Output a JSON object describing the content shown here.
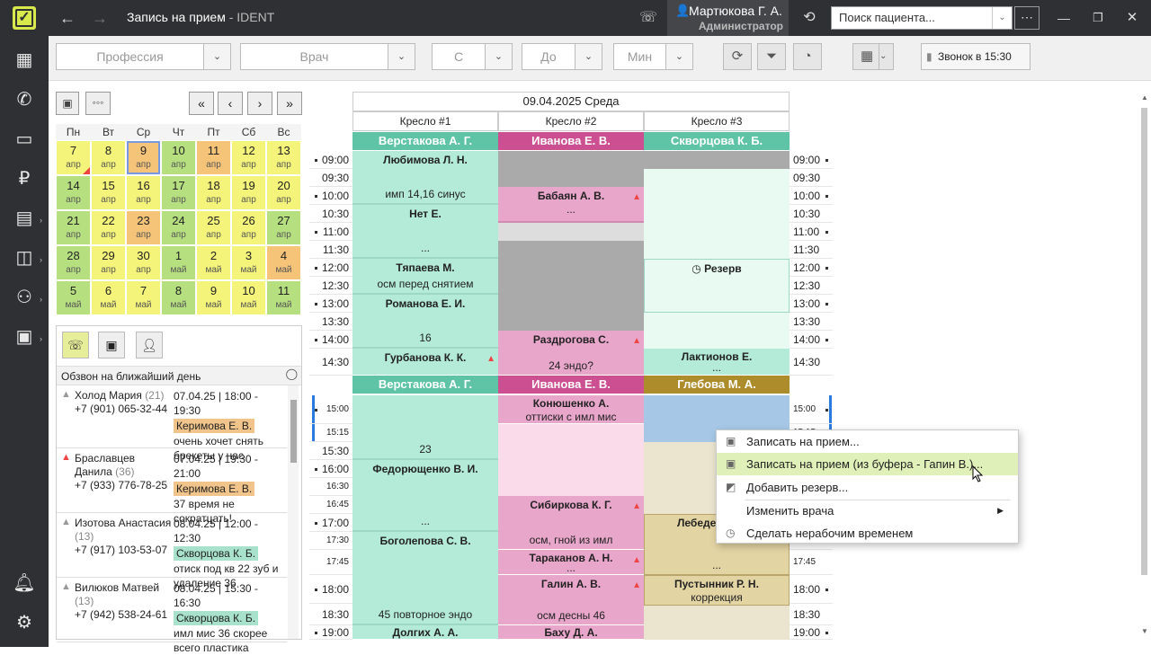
{
  "titlebar": {
    "title": "Запись на прием",
    "app": " - IDENT",
    "user": "Мартюкова Г. А.",
    "role": "Администратор",
    "search_placeholder": "Поиск пациента..."
  },
  "filters": {
    "profession": "Профессия",
    "doctor": "Врач",
    "from": "С",
    "to": "До",
    "min": "Мин",
    "call_btn": "Звонок в 15:30"
  },
  "calendar": {
    "weekdays": [
      "Пн",
      "Вт",
      "Ср",
      "Чт",
      "Пт",
      "Сб",
      "Вс"
    ],
    "days": [
      {
        "d": "7",
        "m": "апр",
        "c": "y"
      },
      {
        "d": "8",
        "m": "апр",
        "c": "y"
      },
      {
        "d": "9",
        "m": "апр",
        "c": "o",
        "sel": true
      },
      {
        "d": "10",
        "m": "апр",
        "c": "g"
      },
      {
        "d": "11",
        "m": "апр",
        "c": "o"
      },
      {
        "d": "12",
        "m": "апр",
        "c": "y"
      },
      {
        "d": "13",
        "m": "апр",
        "c": "y"
      },
      {
        "d": "14",
        "m": "апр",
        "c": "g"
      },
      {
        "d": "15",
        "m": "апр",
        "c": "y"
      },
      {
        "d": "16",
        "m": "апр",
        "c": "y"
      },
      {
        "d": "17",
        "m": "апр",
        "c": "g"
      },
      {
        "d": "18",
        "m": "апр",
        "c": "y"
      },
      {
        "d": "19",
        "m": "апр",
        "c": "y"
      },
      {
        "d": "20",
        "m": "апр",
        "c": "y"
      },
      {
        "d": "21",
        "m": "апр",
        "c": "g"
      },
      {
        "d": "22",
        "m": "апр",
        "c": "y"
      },
      {
        "d": "23",
        "m": "апр",
        "c": "o"
      },
      {
        "d": "24",
        "m": "апр",
        "c": "g"
      },
      {
        "d": "25",
        "m": "апр",
        "c": "y"
      },
      {
        "d": "26",
        "m": "апр",
        "c": "y"
      },
      {
        "d": "27",
        "m": "апр",
        "c": "g"
      },
      {
        "d": "28",
        "m": "апр",
        "c": "g"
      },
      {
        "d": "29",
        "m": "апр",
        "c": "y"
      },
      {
        "d": "30",
        "m": "апр",
        "c": "y"
      },
      {
        "d": "1",
        "m": "май",
        "c": "g"
      },
      {
        "d": "2",
        "m": "май",
        "c": "y"
      },
      {
        "d": "3",
        "m": "май",
        "c": "y"
      },
      {
        "d": "4",
        "m": "май",
        "c": "o"
      },
      {
        "d": "5",
        "m": "май",
        "c": "g"
      },
      {
        "d": "6",
        "m": "май",
        "c": "y"
      },
      {
        "d": "7",
        "m": "май",
        "c": "y"
      },
      {
        "d": "8",
        "m": "май",
        "c": "g"
      },
      {
        "d": "9",
        "m": "май",
        "c": "y"
      },
      {
        "d": "10",
        "m": "май",
        "c": "y"
      },
      {
        "d": "11",
        "m": "май",
        "c": "g"
      }
    ]
  },
  "calls": {
    "title": "Обзвон на ближайший день",
    "items": [
      {
        "name": "Холод Мария",
        "age": "(21)",
        "phone": "+7 (901) 065-32-44",
        "date": "07.04.25",
        "time": "18:00 - 19:30",
        "doctor": "Керимова Е. В.",
        "note": "очень хочет снять брекеты у нас",
        "red": false
      },
      {
        "name": "Браславцев Данила",
        "age": "(36)",
        "phone": "+7 (933) 776-78-25",
        "date": "07.04.25",
        "time": "19:30 - 21:00",
        "doctor": "Керимова Е. В.",
        "note": "37 время не сократцать!",
        "red": true
      },
      {
        "name": "Изотова Анастасия",
        "age": "(13)",
        "phone": "+7 (917) 103-53-07",
        "date": "08.04.25",
        "time": "12:00 - 12:30",
        "doctor": "Скворцова К. Б.",
        "note": "отиск под кв 22 зуб и удаление 36",
        "red": false
      },
      {
        "name": "Вилюков Матвей",
        "age": "(13)",
        "phone": "+7 (942) 538-24-61",
        "date": "08.04.25",
        "time": "15:30 - 16:30",
        "doctor": "Скворцова К. Б.",
        "note": "имл мис 36 скорее всего пластика",
        "red": false
      }
    ]
  },
  "schedule": {
    "date": "09.04.2025 Среда",
    "chairs": [
      "Кресло #1",
      "Кресло #2",
      "Кресло #3"
    ],
    "doctors_top": [
      "Верстакова А. Г.",
      "Иванова Е. В.",
      "Скворцова К. Б."
    ],
    "doctors_mid": [
      "Верстакова А. Г.",
      "Иванова Е. В.",
      "Глебова М. А."
    ],
    "times_top": [
      "09:00",
      "09:30",
      "10:00",
      "10:30",
      "11:00",
      "11:30",
      "12:00",
      "12:30",
      "13:00",
      "13:30",
      "14:00",
      "14:30"
    ],
    "times_bottom": [
      "15:00",
      "15:15",
      "15:30",
      "16:00",
      "16:30",
      "16:45",
      "17:00",
      "17:30",
      "17:45",
      "18:00",
      "18:30",
      "19:00"
    ],
    "appointments": {
      "c1": [
        {
          "name": "Любимова Л. Н.",
          "note": "имп 14,16 синус"
        },
        {
          "name": "Нет Е.",
          "note": "..."
        },
        {
          "name": "Тяпаева М.",
          "note": "осм перед снятием"
        },
        {
          "name": "Романова Е. И.",
          "note": "16"
        },
        {
          "name": "Гурбанова К. К.",
          "note": ""
        },
        {
          "name": "",
          "note": "23"
        },
        {
          "name": "Федорющенко В. И.",
          "note": "..."
        },
        {
          "name": "Боголепова С. В.",
          "note": "45 повторное эндо"
        },
        {
          "name": "Долгих А. А.",
          "note": ""
        }
      ],
      "c2": [
        {
          "name": "Бабаян А. В.",
          "note": "..."
        },
        {
          "name": "Раздрогова С.",
          "note": "24 эндо?"
        },
        {
          "name": "Конюшенко А.",
          "note": "оттиски с имл мис"
        },
        {
          "name": "Сибиркова К. Г.",
          "note": "осм, гной из имл"
        },
        {
          "name": "Тараканов А. Н.",
          "note": "..."
        },
        {
          "name": "Галин А. В.",
          "note": "осм десны 46"
        },
        {
          "name": "Баху Д. А.",
          "note": ""
        }
      ],
      "c3": [
        {
          "name": "Резерв",
          "note": ""
        },
        {
          "name": "Лактионов Е.",
          "note": "..."
        },
        {
          "name": "Лебеде",
          "note": "..."
        },
        {
          "name": "Пустынник Р. Н.",
          "note": "коррекция"
        }
      ]
    }
  },
  "context_menu": {
    "items": [
      "Записать на прием...",
      "Записать на прием (из буфера - Гапин В.)...",
      "Добавить резерв...",
      "Изменить врача",
      "Сделать нерабочим временем"
    ]
  },
  "colors": {
    "teal": "#5fc4a6",
    "pink": "#cc4f92",
    "brown": "#ad8c2c",
    "appt1": "#b3ead8",
    "appt2": "#e9a6cb",
    "appt3": "#e3d4a3"
  }
}
